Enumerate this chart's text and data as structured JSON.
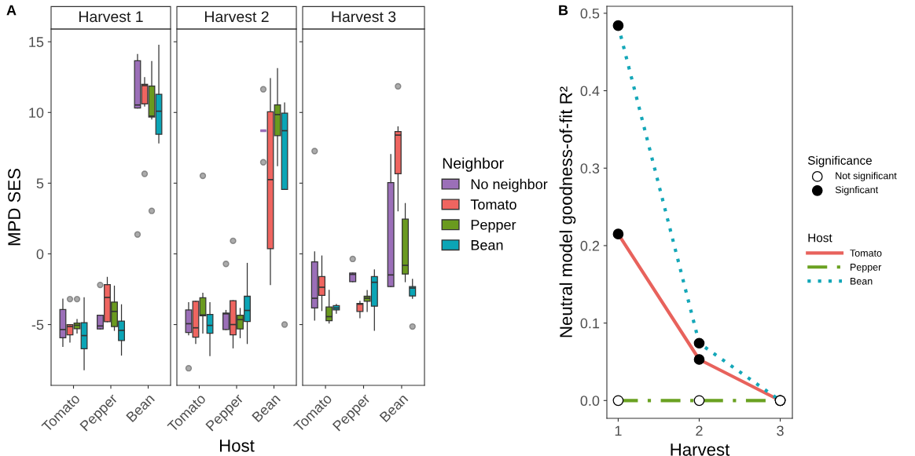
{
  "chart_data": [
    {
      "type": "box",
      "title": "Harvest 1",
      "ylabel": "MPD SES",
      "annotations": [
        "A"
      ],
      "categories": [
        "Tomato",
        "Pepper",
        "Bean"
      ],
      "ylim": [
        -9.3,
        15.9
      ],
      "yticks": [
        -5,
        0,
        5,
        10,
        15
      ],
      "tick_labels": "xy",
      "grid": false,
      "series": [
        {
          "color": "#9b6fb8",
          "boxes": [
            {
              "low": -6.55,
              "q1": -5.93,
              "median": -5.35,
              "q3": -3.93,
              "high": -3.2
            },
            {
              "low": -5.31,
              "q1": -5.31,
              "median": -5.1,
              "q3": -4.34,
              "high": -4.34,
              "outliers": [
                -2.2
              ]
            },
            {
              "low": 10.32,
              "q1": 10.32,
              "median": 10.53,
              "q3": 13.66,
              "high": 14.1,
              "outliers": [
                1.37
              ]
            }
          ]
        },
        {
          "color": "#ef6560",
          "boxes": [
            {
              "low": -6.24,
              "q1": -5.72,
              "median": -5.14,
              "q3": -5.0,
              "high": -5.0,
              "outliers": [
                -3.2
              ]
            },
            {
              "low": -4.8,
              "q1": -4.8,
              "median": -3.08,
              "q3": -2.18,
              "high": -1.66
            },
            {
              "low": 10.46,
              "q1": 10.6,
              "median": 11.9,
              "q3": 12.0,
              "high": 12.46,
              "outliers": [
                5.66
              ]
            }
          ]
        },
        {
          "color": "#6a9a1f",
          "boxes": [
            {
              "low": -5.6,
              "q1": -5.3,
              "median": -5.05,
              "q3": -4.9,
              "high": -4.65,
              "outliers": [
                -3.2
              ]
            },
            {
              "low": -5.41,
              "q1": -5.14,
              "median": -4.07,
              "q3": -3.41,
              "high": -2.28
            },
            {
              "low": 9.54,
              "q1": 9.68,
              "median": 9.74,
              "q3": 11.87,
              "high": 13.6,
              "outliers": [
                3.04
              ]
            }
          ]
        },
        {
          "color": "#0ba5b6",
          "boxes": [
            {
              "low": -8.2,
              "q1": -6.71,
              "median": -5.78,
              "q3": -4.86,
              "high": -3.1
            },
            {
              "low": -7.16,
              "q1": -6.13,
              "median": -5.41,
              "q3": -4.75,
              "high": -3.6
            },
            {
              "low": 7.85,
              "q1": 8.46,
              "median": 10.09,
              "q3": 11.29,
              "high": 14.75
            }
          ]
        }
      ]
    },
    {
      "type": "box",
      "title": "Harvest 2",
      "xlabel": "Host",
      "categories": [
        "Tomato",
        "Pepper",
        "Bean"
      ],
      "ylim": [
        -9.3,
        15.9
      ],
      "yticks": [
        -5,
        0,
        5,
        10,
        15
      ],
      "tick_labels": "x",
      "grid": false,
      "series": [
        {
          "color": "#9b6fb8",
          "boxes": [
            {
              "low": -5.72,
              "q1": -5.56,
              "median": -4.94,
              "q3": -3.97,
              "high": -3.45,
              "outliers": [
                -8.09
              ]
            },
            {
              "low": -5.35,
              "q1": -5.35,
              "median": -4.24,
              "q3": -4.18,
              "high": -4.0,
              "outliers": [
                -0.71
              ]
            },
            {
              "low": 8.71,
              "q1": 8.71,
              "median": 8.71,
              "q3": 8.71,
              "high": 8.71,
              "outliers": [
                11.64,
                6.48
              ]
            }
          ]
        },
        {
          "color": "#ef6560",
          "boxes": [
            {
              "low": -6.34,
              "q1": -5.89,
              "median": -5.23,
              "q3": -3.35,
              "high": -3.35
            },
            {
              "low": -6.65,
              "q1": -5.72,
              "median": -5.0,
              "q3": -3.31,
              "high": -3.31,
              "outliers": [
                0.92
              ]
            },
            {
              "low": -2.18,
              "q1": 0.36,
              "median": 5.25,
              "q3": 10.05,
              "high": 12.39
            }
          ]
        },
        {
          "color": "#6a9a1f",
          "boxes": [
            {
              "low": -5.6,
              "q1": -4.38,
              "median": -4.32,
              "q3": -3.1,
              "high": -2.79,
              "outliers": [
                5.52
              ]
            },
            {
              "low": -5.93,
              "q1": -5.31,
              "median": -4.65,
              "q3": -4.34,
              "high": -3.86
            },
            {
              "low": 6.24,
              "q1": 8.36,
              "median": 9.85,
              "q3": 10.53,
              "high": 13.1
            }
          ]
        },
        {
          "color": "#0ba5b6",
          "boxes": [
            {
              "low": -7.2,
              "q1": -5.62,
              "median": -5.06,
              "q3": -4.28,
              "high": -3.45
            },
            {
              "low": -6.34,
              "q1": -4.79,
              "median": -4.0,
              "q3": -3.0,
              "high": -0.67
            },
            {
              "low": 4.55,
              "q1": 4.55,
              "median": 8.71,
              "q3": 9.95,
              "high": 10.67,
              "outliers": [
                -5.0
              ]
            }
          ]
        }
      ]
    },
    {
      "type": "box",
      "title": "Harvest 3",
      "legend_title": "Neighbor",
      "categories": [
        "Tomato",
        "Pepper",
        "Bean"
      ],
      "ylim": [
        -9.3,
        15.9
      ],
      "yticks": [
        -5,
        0,
        5,
        10,
        15
      ],
      "tick_labels": "x",
      "grid": false,
      "legend": "right",
      "series": [
        {
          "name": "No neighbor",
          "color": "#9b6fb8",
          "boxes": [
            {
              "low": -4.69,
              "q1": -3.83,
              "median": -3.14,
              "q3": -0.57,
              "high": 0.15,
              "outliers": [
                7.27
              ]
            },
            {
              "low": -1.97,
              "q1": -1.97,
              "median": -1.45,
              "q3": -1.35,
              "high": -1.35,
              "outliers": [
                -0.36
              ]
            },
            {
              "low": -2.32,
              "q1": -2.32,
              "median": -1.49,
              "q3": 5.04,
              "high": 7.02
            }
          ]
        },
        {
          "name": "Tomato",
          "color": "#ef6560",
          "boxes": [
            {
              "low": -4.01,
              "q1": -2.94,
              "median": -2.36,
              "q3": -1.6,
              "high": -0.15
            },
            {
              "low": -4.52,
              "q1": -4.07,
              "median": -3.56,
              "q3": -3.5,
              "high": -3.35
            },
            {
              "low": 3.04,
              "q1": 5.66,
              "median": 8.4,
              "q3": 8.65,
              "high": 8.98,
              "outliers": [
                11.85
              ]
            }
          ]
        },
        {
          "name": "Pepper",
          "color": "#6a9a1f",
          "boxes": [
            {
              "low": -4.9,
              "q1": -4.73,
              "median": -4.44,
              "q3": -3.76,
              "high": -2.57
            },
            {
              "low": -4.07,
              "q1": -3.35,
              "median": -3.14,
              "q3": -3.0,
              "high": -2.59
            },
            {
              "low": -1.97,
              "q1": -1.43,
              "median": -0.81,
              "q3": 2.46,
              "high": 3.56
            }
          ]
        },
        {
          "name": "Bean",
          "color": "#0ba5b6",
          "boxes": [
            {
              "low": -4.2,
              "q1": -3.97,
              "median": -3.83,
              "q3": -3.66,
              "high": -3.57
            },
            {
              "low": -5.41,
              "q1": -3.7,
              "median": -2.01,
              "q3": -1.6,
              "high": -1.14
            },
            {
              "low": -3.14,
              "q1": -2.98,
              "median": -2.42,
              "q3": -2.32,
              "high": -1.8,
              "outliers": [
                -5.14
              ]
            }
          ]
        }
      ]
    },
    {
      "type": "line",
      "xlabel": "Harvest",
      "ylabel": "Neutral model goodness-of-fit R²",
      "annotations": [
        "B"
      ],
      "legend_title": [
        "Significance",
        "Host"
      ],
      "x": [
        1,
        2,
        3
      ],
      "xlim": [
        0.86,
        3.15
      ],
      "xticks": [
        1,
        2,
        3
      ],
      "ylim": [
        -0.023,
        0.509
      ],
      "yticks": [
        {
          "value": 0,
          "label": "0.0"
        },
        0.1,
        0.2,
        0.3,
        0.4,
        0.5
      ],
      "grid": false,
      "legend": "right",
      "series": [
        {
          "name": "Tomato",
          "color": "#e8625c",
          "line_style": "solid",
          "marker": "none",
          "values": [
            0.215,
            0.053,
            0
          ]
        },
        {
          "name": "Pepper",
          "color": "#6aa121",
          "line_style": "dashdot",
          "marker": "none",
          "values": [
            0,
            0,
            0
          ]
        },
        {
          "name": "Bean",
          "color": "#14a7b8",
          "line_style": "dotted",
          "marker": "none",
          "values": [
            0.484,
            0.074,
            0
          ]
        },
        {
          "type": "scatter",
          "name": "Not significant",
          "color": "#ffffff",
          "marker": "circle",
          "x": [
            1,
            2,
            3,
            3,
            3
          ],
          "values": [
            0,
            0,
            0,
            0,
            0
          ]
        },
        {
          "type": "scatter",
          "name": "Signficant",
          "color": "#000000",
          "marker": "circle",
          "x": [
            1,
            2,
            1,
            2
          ],
          "values": [
            0.215,
            0.053,
            0.484,
            0.074
          ]
        }
      ]
    }
  ]
}
